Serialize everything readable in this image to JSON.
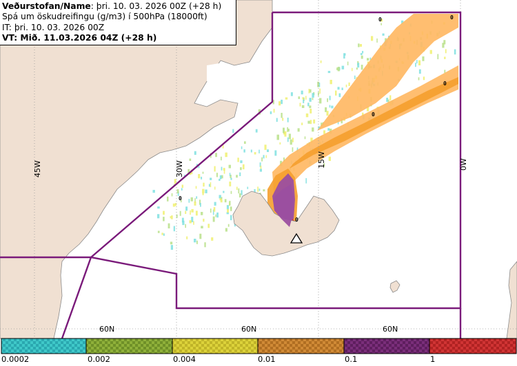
{
  "header": {
    "line1_label": "Veðurstofan/Name",
    "line1_value": ": þri. 10. 03. 2026 00Z (+28 h)",
    "line2": "Spá um öskudreifingu (g/m3) í 500hPa (18000ft)",
    "line3": "IT: þri. 10. 03. 2026 00Z",
    "line4": "VT: Mið. 11.03.2026 04Z (+28 h)"
  },
  "map": {
    "longitude_labels": [
      "45W",
      "30W",
      "15W",
      "0W"
    ],
    "latitude_labels": [
      "60N",
      "60N",
      "60N"
    ],
    "cell_markers": [
      "0",
      "0",
      "0",
      "0",
      "0",
      "0"
    ],
    "volcano_symbol": "triangle",
    "colors": {
      "land": "#f0e0d2",
      "sea": "#ffffff",
      "coast": "#8a8a8a",
      "region_boundary": "#7a1a7a",
      "grid": "#9a9a9a",
      "ash_light": "#ffb864",
      "ash_mid": "#f59e2e",
      "ash_purple": "#9b4fa0",
      "ash_red": "#d83030",
      "ash_trace": [
        "#7fe0e0",
        "#b8e08a",
        "#f0f070"
      ]
    }
  },
  "legend": {
    "classes": [
      {
        "color_a": "#3fc8c8",
        "color_b": "#2aa8b0"
      },
      {
        "color_a": "#8fb03a",
        "color_b": "#6f9028"
      },
      {
        "color_a": "#dcd23a",
        "color_b": "#c0b428"
      },
      {
        "color_a": "#d08a36",
        "color_b": "#b06e22"
      },
      {
        "color_a": "#7a2e7a",
        "color_b": "#5e1e5e"
      },
      {
        "color_a": "#d03434",
        "color_b": "#b02222"
      }
    ],
    "labels": [
      "0.0002",
      "0.002",
      "0.004",
      "0.01",
      "0.1",
      "1"
    ]
  }
}
